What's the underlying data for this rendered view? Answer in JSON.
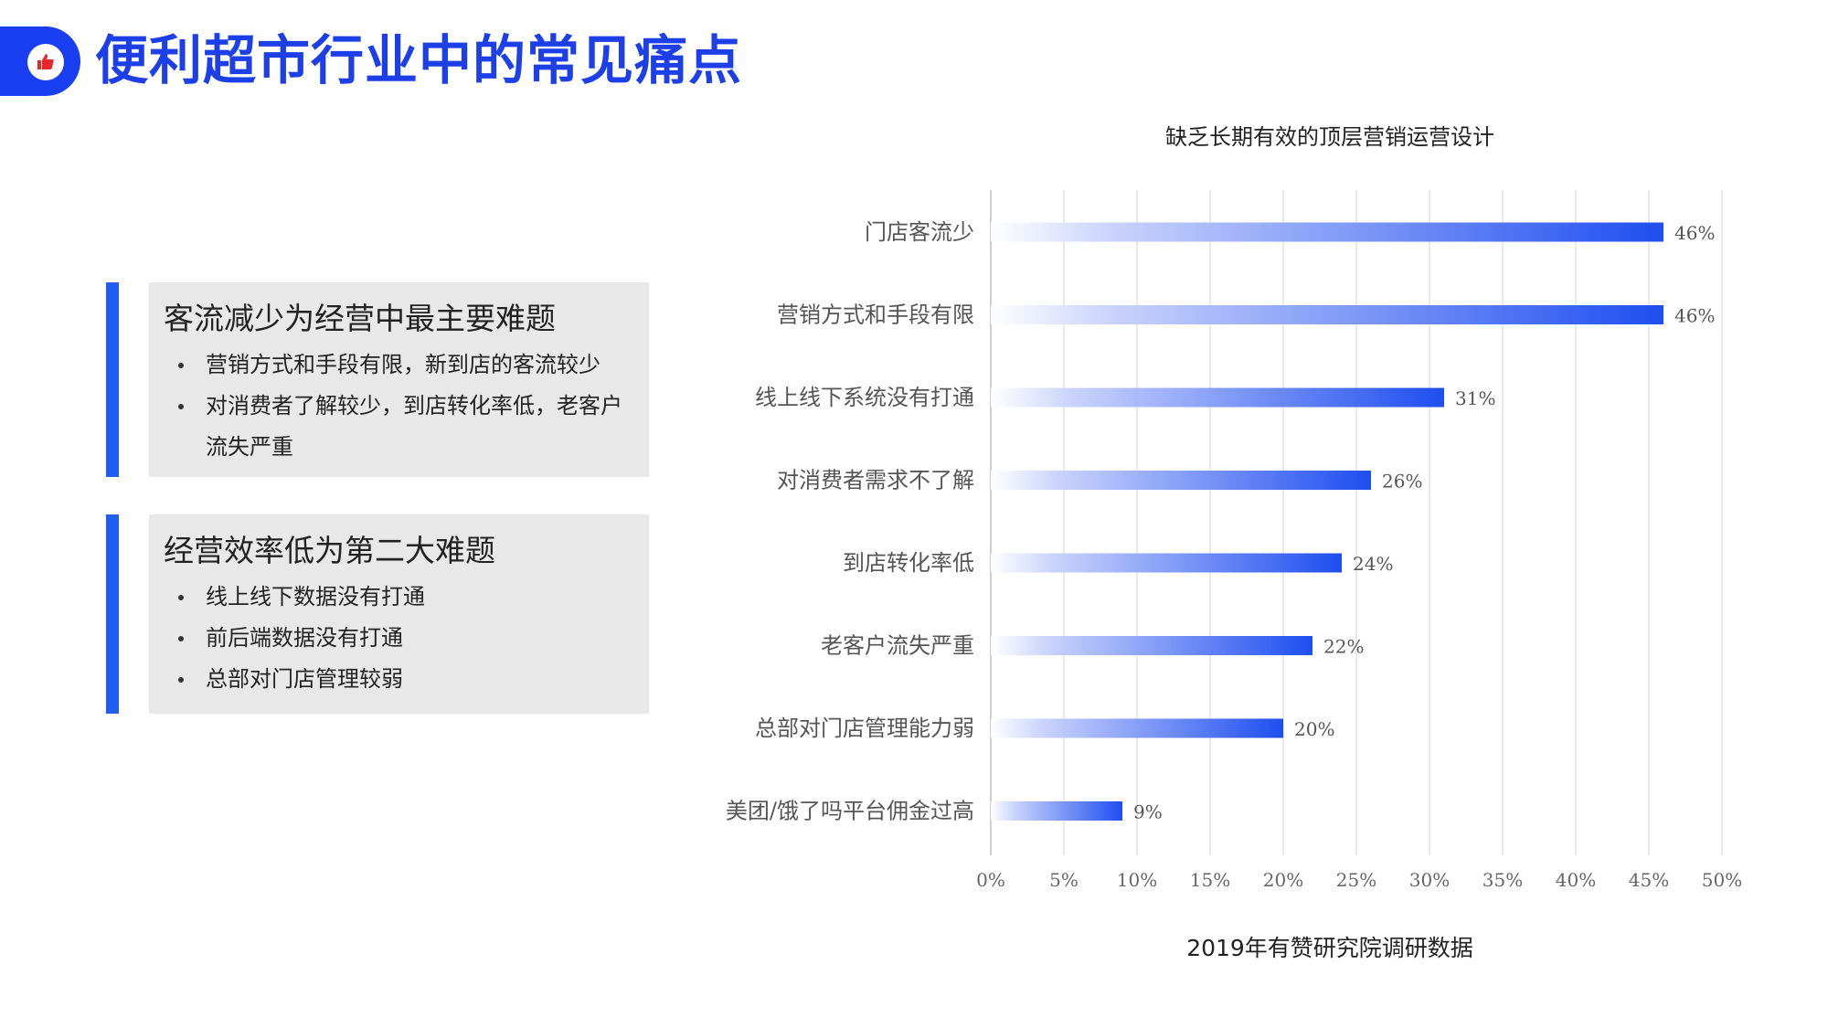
{
  "page": {
    "title": "便利超市行业中的常见痛点",
    "icon": "thumbs-up-icon"
  },
  "cards": [
    {
      "heading": "客流减少为经营中最主要难题",
      "bullets": [
        "营销方式和手段有限，新到店的客流较少",
        "对消费者了解较少，到店转化率低，老客户流失严重"
      ]
    },
    {
      "heading": "经营效率低为第二大难题",
      "bullets": [
        "线上线下数据没有打通",
        "前后端数据没有打通",
        "总部对门店管理较弱"
      ]
    }
  ],
  "colors": {
    "accent": "#1c3fe8",
    "bar_start": "#ffffff",
    "bar_end": "#1f4ef0",
    "card_bg": "#e8e8e8"
  },
  "chart_data": {
    "type": "bar",
    "orientation": "horizontal",
    "title": "缺乏长期有效的顶层营销运营设计",
    "source": "2019年有赞研究院调研数据",
    "categories": [
      "门店客流少",
      "营销方式和手段有限",
      "线上线下系统没有打通",
      "对消费者需求不了解",
      "到店转化率低",
      "老客户流失严重",
      "总部对门店管理能力弱",
      "美团/饿了吗平台佣金过高"
    ],
    "values": [
      46,
      46,
      31,
      26,
      24,
      22,
      20,
      9
    ],
    "value_labels": [
      "46%",
      "46%",
      "31%",
      "26%",
      "24%",
      "22%",
      "20%",
      "9%"
    ],
    "ticks": [
      0,
      5,
      10,
      15,
      20,
      25,
      30,
      35,
      40,
      45,
      50
    ],
    "tick_labels": [
      "0%",
      "5%",
      "10%",
      "15%",
      "20%",
      "25%",
      "30%",
      "35%",
      "40%",
      "45%",
      "50%"
    ],
    "xlim": [
      0,
      50
    ],
    "grid": true
  }
}
